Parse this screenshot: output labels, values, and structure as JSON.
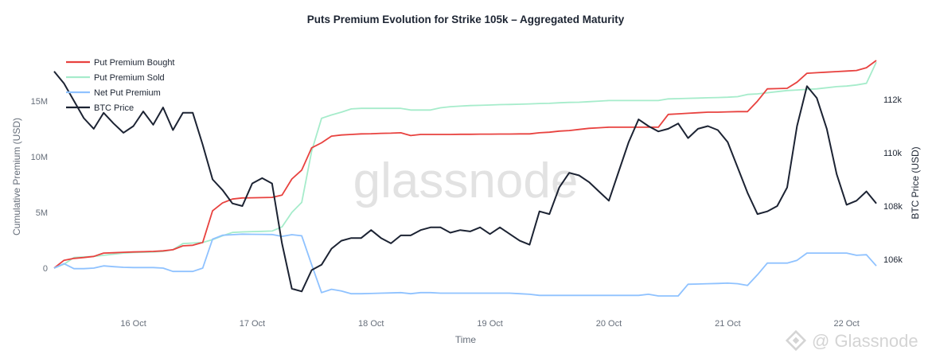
{
  "chart_data": {
    "type": "line",
    "title": "Puts Premium Evolution for Strike 105k – Aggregated Maturity",
    "xlabel": "Time",
    "ylabel_left": "Cumulative Premium (USD)",
    "ylabel_right": "BTC Price (USD)",
    "x_ticks": [
      "16 Oct",
      "17 Oct",
      "18 Oct",
      "19 Oct",
      "20 Oct",
      "21 Oct",
      "22 Oct"
    ],
    "y_left_ticks": [
      {
        "value": 0,
        "label": "0"
      },
      {
        "value": 5,
        "label": "5M"
      },
      {
        "value": 10,
        "label": "10M"
      },
      {
        "value": 15,
        "label": "15M"
      }
    ],
    "y_right_ticks": [
      {
        "value": 106,
        "label": "106k"
      },
      {
        "value": 108,
        "label": "108k"
      },
      {
        "value": 110,
        "label": "110k"
      },
      {
        "value": 112,
        "label": "112k"
      }
    ],
    "ylim_left_millions": [
      -3.07,
      19.79
    ],
    "ylim_right_thousands": [
      104.39,
      113.94
    ],
    "xlim": [
      "15 Oct 08:00",
      "22 Oct 06:00"
    ],
    "grid": false,
    "legend_position": "top-left",
    "x": [
      "15 Oct 08:00",
      "15 Oct 10:00",
      "15 Oct 12:00",
      "15 Oct 14:00",
      "15 Oct 16:00",
      "15 Oct 18:00",
      "15 Oct 20:00",
      "15 Oct 22:00",
      "16 Oct 00:00",
      "16 Oct 02:00",
      "16 Oct 04:00",
      "16 Oct 06:00",
      "16 Oct 08:00",
      "16 Oct 10:00",
      "16 Oct 12:00",
      "16 Oct 14:00",
      "16 Oct 16:00",
      "16 Oct 18:00",
      "16 Oct 20:00",
      "16 Oct 22:00",
      "17 Oct 00:00",
      "17 Oct 02:00",
      "17 Oct 04:00",
      "17 Oct 06:00",
      "17 Oct 08:00",
      "17 Oct 10:00",
      "17 Oct 12:00",
      "17 Oct 14:00",
      "17 Oct 16:00",
      "17 Oct 18:00",
      "17 Oct 20:00",
      "17 Oct 22:00",
      "18 Oct 00:00",
      "18 Oct 02:00",
      "18 Oct 04:00",
      "18 Oct 06:00",
      "18 Oct 08:00",
      "18 Oct 10:00",
      "18 Oct 12:00",
      "18 Oct 14:00",
      "18 Oct 16:00",
      "18 Oct 18:00",
      "18 Oct 20:00",
      "18 Oct 22:00",
      "19 Oct 00:00",
      "19 Oct 02:00",
      "19 Oct 04:00",
      "19 Oct 06:00",
      "19 Oct 08:00",
      "19 Oct 10:00",
      "19 Oct 12:00",
      "19 Oct 14:00",
      "19 Oct 16:00",
      "19 Oct 18:00",
      "19 Oct 20:00",
      "19 Oct 22:00",
      "20 Oct 00:00",
      "20 Oct 02:00",
      "20 Oct 04:00",
      "20 Oct 06:00",
      "20 Oct 08:00",
      "20 Oct 10:00",
      "20 Oct 12:00",
      "20 Oct 14:00",
      "20 Oct 16:00",
      "20 Oct 18:00",
      "20 Oct 20:00",
      "20 Oct 22:00",
      "21 Oct 00:00",
      "21 Oct 02:00",
      "21 Oct 04:00",
      "21 Oct 06:00",
      "21 Oct 08:00",
      "21 Oct 10:00",
      "21 Oct 12:00",
      "21 Oct 14:00",
      "21 Oct 16:00",
      "21 Oct 18:00",
      "21 Oct 20:00",
      "21 Oct 22:00",
      "22 Oct 00:00",
      "22 Oct 02:00",
      "22 Oct 04:00",
      "22 Oct 06:00"
    ],
    "series": [
      {
        "name": "Put Premium Bought",
        "axis": "left",
        "unit": "M USD",
        "color": "#e8423f",
        "values": [
          0,
          0.7,
          0.87,
          0.95,
          1.05,
          1.35,
          1.38,
          1.42,
          1.45,
          1.47,
          1.5,
          1.55,
          1.65,
          2.0,
          2.05,
          2.3,
          5.15,
          5.85,
          6.2,
          6.3,
          6.32,
          6.33,
          6.35,
          6.55,
          8.0,
          8.8,
          10.8,
          11.25,
          11.85,
          11.95,
          12.0,
          12.05,
          12.07,
          12.1,
          12.12,
          12.15,
          11.9,
          12.0,
          12.0,
          12.0,
          12.0,
          12.02,
          12.02,
          12.03,
          12.03,
          12.04,
          12.04,
          12.05,
          12.05,
          12.15,
          12.2,
          12.3,
          12.35,
          12.45,
          12.55,
          12.6,
          12.65,
          12.65,
          12.65,
          12.65,
          12.65,
          12.65,
          13.8,
          13.85,
          13.9,
          13.95,
          14.0,
          14.0,
          14.03,
          14.05,
          14.05,
          15.0,
          16.1,
          16.12,
          16.15,
          16.7,
          17.5,
          17.55,
          17.6,
          17.65,
          17.7,
          17.75,
          18.0,
          18.65
        ]
      },
      {
        "name": "Put Premium Sold",
        "axis": "left",
        "unit": "M USD",
        "color": "#a6eccb",
        "values": [
          0,
          0.35,
          0.95,
          1.0,
          1.05,
          1.15,
          1.25,
          1.35,
          1.4,
          1.42,
          1.45,
          1.5,
          1.65,
          2.2,
          2.25,
          2.3,
          2.55,
          2.9,
          3.2,
          3.25,
          3.28,
          3.3,
          3.33,
          3.7,
          5.0,
          5.9,
          10.5,
          13.45,
          13.75,
          14.0,
          14.3,
          14.35,
          14.35,
          14.35,
          14.35,
          14.35,
          14.2,
          14.2,
          14.2,
          14.4,
          14.5,
          14.55,
          14.6,
          14.62,
          14.65,
          14.68,
          14.7,
          14.72,
          14.75,
          14.78,
          14.8,
          14.85,
          14.88,
          14.9,
          14.95,
          15.0,
          15.05,
          15.05,
          15.05,
          15.05,
          15.05,
          15.05,
          15.2,
          15.22,
          15.25,
          15.27,
          15.3,
          15.32,
          15.35,
          15.4,
          15.6,
          15.65,
          15.75,
          15.85,
          15.95,
          16.0,
          16.05,
          16.1,
          16.2,
          16.3,
          16.35,
          16.45,
          16.6,
          18.5
        ]
      },
      {
        "name": "Net Put Premium",
        "axis": "left",
        "unit": "M USD",
        "color": "#8fc2ff",
        "values": [
          0,
          0.4,
          -0.05,
          -0.05,
          0,
          0.2,
          0.13,
          0.07,
          0.05,
          0.05,
          0.05,
          0,
          -0.3,
          -0.3,
          -0.3,
          0,
          2.6,
          2.95,
          3.0,
          3.05,
          3.04,
          3.03,
          3.02,
          2.85,
          3.0,
          2.9,
          0.3,
          -2.2,
          -1.9,
          -2.05,
          -2.3,
          -2.3,
          -2.28,
          -2.25,
          -2.23,
          -2.2,
          -2.3,
          -2.2,
          -2.2,
          -2.25,
          -2.25,
          -2.25,
          -2.25,
          -2.25,
          -2.25,
          -2.25,
          -2.25,
          -2.3,
          -2.35,
          -2.45,
          -2.45,
          -2.45,
          -2.45,
          -2.45,
          -2.45,
          -2.45,
          -2.45,
          -2.45,
          -2.45,
          -2.45,
          -2.35,
          -2.5,
          -2.5,
          -2.5,
          -1.45,
          -1.43,
          -1.4,
          -1.38,
          -1.35,
          -1.4,
          -1.55,
          -0.6,
          0.45,
          0.45,
          0.45,
          0.7,
          1.35,
          1.35,
          1.35,
          1.35,
          1.35,
          1.15,
          1.2,
          0.2
        ]
      },
      {
        "name": "BTC Price",
        "axis": "right",
        "unit": "k USD",
        "color": "#1c2333",
        "values": [
          113.05,
          112.6,
          111.95,
          111.3,
          110.9,
          111.5,
          111.1,
          110.75,
          111.0,
          111.55,
          111.05,
          111.7,
          110.85,
          111.5,
          111.5,
          110.3,
          109.0,
          108.6,
          108.1,
          108.0,
          108.85,
          109.05,
          108.85,
          106.6,
          104.9,
          104.8,
          105.6,
          105.8,
          106.4,
          106.7,
          106.8,
          106.8,
          107.1,
          106.8,
          106.6,
          106.9,
          106.9,
          107.1,
          107.2,
          107.2,
          107.0,
          107.1,
          107.05,
          107.2,
          106.95,
          107.2,
          106.95,
          106.7,
          106.55,
          107.8,
          107.7,
          108.7,
          109.25,
          109.15,
          108.9,
          108.55,
          108.2,
          109.3,
          110.4,
          111.25,
          111.0,
          110.8,
          110.9,
          111.1,
          110.55,
          110.9,
          111.0,
          110.85,
          110.4,
          109.45,
          108.5,
          107.7,
          107.8,
          108.0,
          108.7,
          111.0,
          112.5,
          112.05,
          110.9,
          109.2,
          108.05,
          108.2,
          108.55,
          108.1
        ]
      }
    ]
  },
  "watermark": "glassnode",
  "corner_watermark": "@ Glassnode"
}
